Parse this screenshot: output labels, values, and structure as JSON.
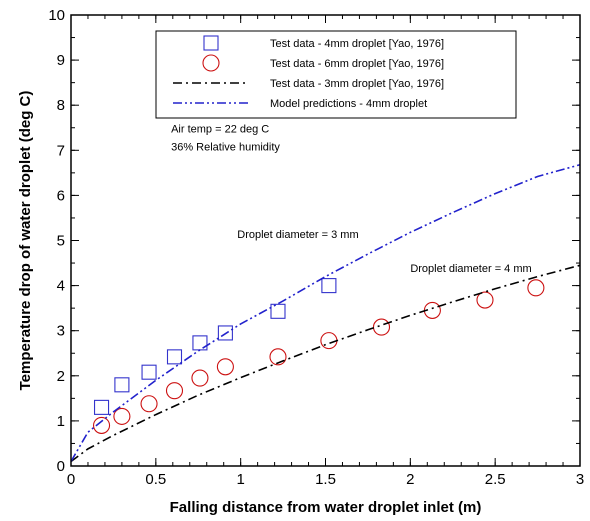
{
  "chart_data": {
    "type": "scatter",
    "xlabel": "Falling distance from water droplet inlet (m)",
    "ylabel": "Temperature drop of water droplet  (deg C)",
    "xlim": [
      0,
      3
    ],
    "ylim": [
      0,
      10
    ],
    "xticks": [
      "0",
      "0.5",
      "1",
      "1.5",
      "2",
      "2.5",
      "3"
    ],
    "xtick_values": [
      0,
      0.5,
      1,
      1.5,
      2,
      2.5,
      3
    ],
    "yticks": [
      "0",
      "1",
      "2",
      "3",
      "4",
      "5",
      "6",
      "7",
      "8",
      "9",
      "10"
    ],
    "ytick_values": [
      0,
      1,
      2,
      3,
      4,
      5,
      6,
      7,
      8,
      9,
      10
    ],
    "grid": false,
    "legend_placement": "top-center",
    "series": [
      {
        "name": "Test data - 4mm droplet [Yao, 1976]",
        "kind": "markers",
        "marker": "square",
        "color": "#3333cc",
        "x": [
          0.18,
          0.3,
          0.46,
          0.61,
          0.76,
          0.91,
          1.22,
          1.52
        ],
        "y": [
          1.3,
          1.8,
          2.08,
          2.42,
          2.73,
          2.95,
          3.43,
          4.0
        ]
      },
      {
        "name": "Test data - 6mm droplet [Yao, 1976]",
        "kind": "markers",
        "marker": "circle",
        "color": "#cc1111",
        "x": [
          0.18,
          0.3,
          0.46,
          0.61,
          0.76,
          0.91,
          1.22,
          1.52,
          1.83,
          2.13,
          2.44,
          2.74
        ],
        "y": [
          0.9,
          1.1,
          1.38,
          1.67,
          1.95,
          2.2,
          2.42,
          2.78,
          3.08,
          3.45,
          3.68,
          3.95
        ]
      },
      {
        "name": "Test data - 3mm droplet [Yao, 1976]",
        "kind": "line",
        "dash": "dash-dot",
        "color": "#000000",
        "x": [
          0,
          0.1,
          0.25,
          0.5,
          0.75,
          1.0,
          1.25,
          1.5,
          1.75,
          2.0,
          2.25,
          2.5,
          2.75,
          3.0
        ],
        "y": [
          0.1,
          0.38,
          0.68,
          1.14,
          1.57,
          1.96,
          2.33,
          2.69,
          3.02,
          3.34,
          3.64,
          3.93,
          4.2,
          4.45
        ]
      },
      {
        "name": "Model predictions - 4mm droplet",
        "kind": "line",
        "dash": "dash-dot-dot",
        "color": "#2222cc",
        "x": [
          0,
          0.1,
          0.25,
          0.5,
          0.75,
          1.0,
          1.25,
          1.5,
          1.75,
          2.0,
          2.25,
          2.5,
          2.75,
          3.0
        ],
        "y": [
          0.1,
          0.75,
          1.2,
          1.9,
          2.55,
          3.15,
          3.66,
          4.2,
          4.7,
          5.18,
          5.62,
          6.04,
          6.42,
          6.68
        ]
      }
    ],
    "annotations": [
      {
        "text": "Air temp = 22 deg C",
        "x": 0.59,
        "y": 7.4
      },
      {
        "text": "36% Relative humidity",
        "x": 0.59,
        "y": 7.0
      },
      {
        "text": "Droplet diameter = 3 mm",
        "x": 0.98,
        "y": 5.05
      },
      {
        "text": "Droplet diameter = 4 mm",
        "x": 2.0,
        "y": 4.3
      }
    ]
  }
}
